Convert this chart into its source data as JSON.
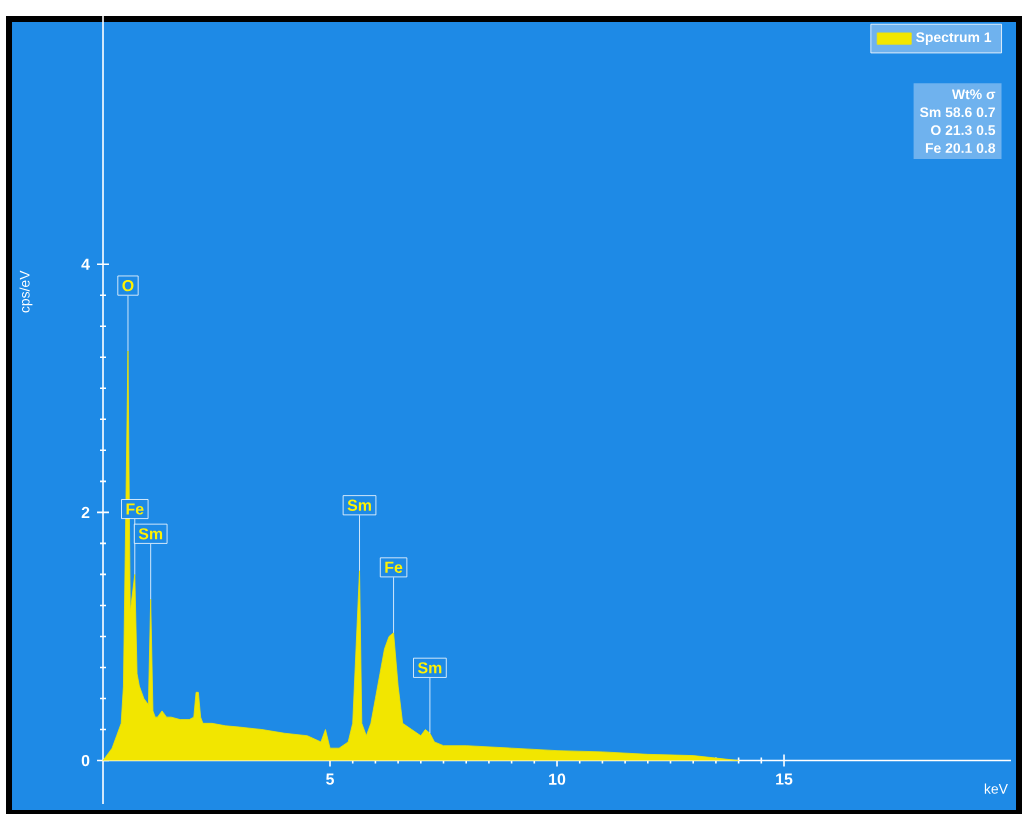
{
  "chart_data": {
    "type": "area",
    "xlabel": "keV",
    "ylabel": "cps/eV",
    "x": [
      0.0,
      0.1,
      0.2,
      0.3,
      0.4,
      0.45,
      0.55,
      0.6,
      0.7,
      0.75,
      0.8,
      0.9,
      1.0,
      1.05,
      1.1,
      1.15,
      1.2,
      1.3,
      1.4,
      1.5,
      1.7,
      1.9,
      2.0,
      2.05,
      2.1,
      2.15,
      2.2,
      2.4,
      2.7,
      3.0,
      3.5,
      4.0,
      4.5,
      4.8,
      4.9,
      5.0,
      5.2,
      5.4,
      5.5,
      5.65,
      5.7,
      5.8,
      5.9,
      6.0,
      6.1,
      6.2,
      6.3,
      6.4,
      6.5,
      6.6,
      6.8,
      7.0,
      7.1,
      7.2,
      7.3,
      7.5,
      8.0,
      9.0,
      10.0,
      11.0,
      12.0,
      13.0,
      13.5,
      14.0
    ],
    "series": [
      {
        "name": "Spectrum 1",
        "color": "#f2e600",
        "values": [
          0,
          0.05,
          0.1,
          0.2,
          0.3,
          0.6,
          3.3,
          1.2,
          1.5,
          0.7,
          0.6,
          0.5,
          0.45,
          1.3,
          0.4,
          0.35,
          0.35,
          0.4,
          0.35,
          0.35,
          0.33,
          0.33,
          0.35,
          0.55,
          0.55,
          0.35,
          0.3,
          0.3,
          0.28,
          0.27,
          0.25,
          0.22,
          0.2,
          0.15,
          0.25,
          0.1,
          0.1,
          0.15,
          0.3,
          1.53,
          0.3,
          0.2,
          0.3,
          0.5,
          0.7,
          0.9,
          1.0,
          1.03,
          0.6,
          0.3,
          0.25,
          0.2,
          0.25,
          0.22,
          0.15,
          0.12,
          0.12,
          0.1,
          0.08,
          0.07,
          0.05,
          0.04,
          0.02,
          0
        ]
      }
    ],
    "xlim": [
      0,
      20
    ],
    "ylim": [
      -0.35,
      6
    ],
    "xticks": [
      5,
      10,
      15
    ],
    "yticks": [
      0,
      2,
      4
    ],
    "legend": "top right",
    "marker": "none",
    "annotations": [
      {
        "text": "O",
        "x": 0.55,
        "y": 3.3
      },
      {
        "text": "Fe",
        "x": 0.7,
        "y": 1.5
      },
      {
        "text": "Sm",
        "x": 1.05,
        "y": 1.3
      },
      {
        "text": "Sm",
        "x": 5.65,
        "y": 1.53
      },
      {
        "text": "Fe",
        "x": 6.4,
        "y": 1.03
      },
      {
        "text": "Sm",
        "x": 7.2,
        "y": 0.22
      },
      "Wt%   σ",
      "Sm   58.6   0.7",
      "O   21.3   0.5",
      "Fe   20.1   0.8"
    ]
  }
}
